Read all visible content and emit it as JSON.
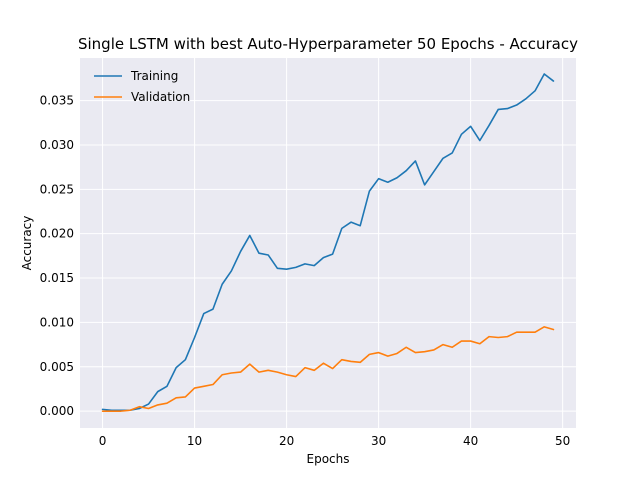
{
  "chart_data": {
    "type": "line",
    "title": "Single LSTM with best Auto-Hyperparameter 50 Epochs - Accuracy",
    "xlabel": "Epochs",
    "ylabel": "Accuracy",
    "xlim": [
      -2.45,
      51.45
    ],
    "ylim": [
      -0.0019,
      0.0398
    ],
    "xticks": [
      0,
      10,
      20,
      30,
      40,
      50
    ],
    "xtick_labels": [
      "0",
      "10",
      "20",
      "30",
      "40",
      "50"
    ],
    "yticks": [
      0.0,
      0.005,
      0.01,
      0.015,
      0.02,
      0.025,
      0.03,
      0.035
    ],
    "ytick_labels": [
      "0.000",
      "0.005",
      "0.010",
      "0.015",
      "0.020",
      "0.025",
      "0.030",
      "0.035"
    ],
    "grid": true,
    "legend": "top-left",
    "x": [
      0,
      1,
      2,
      3,
      4,
      5,
      6,
      7,
      8,
      9,
      10,
      11,
      12,
      13,
      14,
      15,
      16,
      17,
      18,
      19,
      20,
      21,
      22,
      23,
      24,
      25,
      26,
      27,
      28,
      29,
      30,
      31,
      32,
      33,
      34,
      35,
      36,
      37,
      38,
      39,
      40,
      41,
      42,
      43,
      44,
      45,
      46,
      47,
      48,
      49
    ],
    "series": [
      {
        "name": "Training",
        "color": "#1f77b4",
        "values": [
          0.0002,
          0.0001,
          0.0001,
          0.0001,
          0.0003,
          0.0008,
          0.0022,
          0.0028,
          0.0049,
          0.0058,
          0.0083,
          0.011,
          0.0115,
          0.0143,
          0.0158,
          0.018,
          0.0198,
          0.0178,
          0.0176,
          0.0161,
          0.016,
          0.0162,
          0.0166,
          0.0164,
          0.0173,
          0.0177,
          0.0206,
          0.0213,
          0.0209,
          0.0248,
          0.0262,
          0.0258,
          0.0263,
          0.0271,
          0.0282,
          0.0255,
          0.027,
          0.0285,
          0.0291,
          0.0312,
          0.0321,
          0.0305,
          0.0322,
          0.034,
          0.0341,
          0.0345,
          0.0352,
          0.0361,
          0.038,
          0.0372
        ]
      },
      {
        "name": "Validation",
        "color": "#ff7f0e",
        "values": [
          0.0,
          0.0,
          0.0,
          0.0001,
          0.0005,
          0.0003,
          0.0007,
          0.0009,
          0.0015,
          0.0016,
          0.0026,
          0.0028,
          0.003,
          0.0041,
          0.0043,
          0.0044,
          0.0053,
          0.0044,
          0.0046,
          0.0044,
          0.0041,
          0.0039,
          0.0049,
          0.0046,
          0.0054,
          0.0048,
          0.0058,
          0.0056,
          0.0055,
          0.0064,
          0.0066,
          0.0062,
          0.0065,
          0.0072,
          0.0066,
          0.0067,
          0.0069,
          0.0075,
          0.0072,
          0.0079,
          0.0079,
          0.0076,
          0.0084,
          0.0083,
          0.0084,
          0.0089,
          0.0089,
          0.0089,
          0.0095,
          0.0092
        ]
      }
    ]
  }
}
